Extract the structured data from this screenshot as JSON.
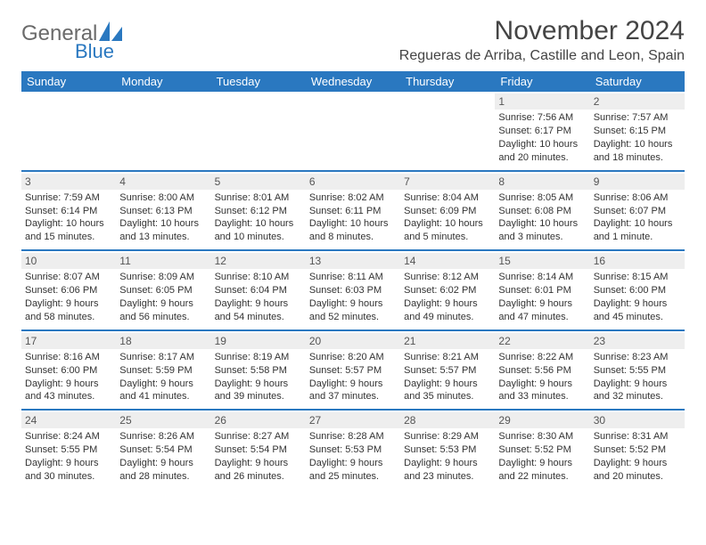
{
  "brand": {
    "text1": "General",
    "text2": "Blue"
  },
  "title": "November 2024",
  "location": "Regueras de Arriba, Castille and Leon, Spain",
  "colors": {
    "header_bg": "#2a78c0",
    "header_text": "#ffffff",
    "daynum_bg": "#eeeeee",
    "rule": "#2a78c0",
    "body_text": "#333333",
    "title_text": "#444444"
  },
  "weekdays": [
    "Sunday",
    "Monday",
    "Tuesday",
    "Wednesday",
    "Thursday",
    "Friday",
    "Saturday"
  ],
  "weeks": [
    [
      {
        "n": "",
        "sr": "",
        "ss": "",
        "dl1": "",
        "dl2": ""
      },
      {
        "n": "",
        "sr": "",
        "ss": "",
        "dl1": "",
        "dl2": ""
      },
      {
        "n": "",
        "sr": "",
        "ss": "",
        "dl1": "",
        "dl2": ""
      },
      {
        "n": "",
        "sr": "",
        "ss": "",
        "dl1": "",
        "dl2": ""
      },
      {
        "n": "",
        "sr": "",
        "ss": "",
        "dl1": "",
        "dl2": ""
      },
      {
        "n": "1",
        "sr": "Sunrise: 7:56 AM",
        "ss": "Sunset: 6:17 PM",
        "dl1": "Daylight: 10 hours",
        "dl2": "and 20 minutes."
      },
      {
        "n": "2",
        "sr": "Sunrise: 7:57 AM",
        "ss": "Sunset: 6:15 PM",
        "dl1": "Daylight: 10 hours",
        "dl2": "and 18 minutes."
      }
    ],
    [
      {
        "n": "3",
        "sr": "Sunrise: 7:59 AM",
        "ss": "Sunset: 6:14 PM",
        "dl1": "Daylight: 10 hours",
        "dl2": "and 15 minutes."
      },
      {
        "n": "4",
        "sr": "Sunrise: 8:00 AM",
        "ss": "Sunset: 6:13 PM",
        "dl1": "Daylight: 10 hours",
        "dl2": "and 13 minutes."
      },
      {
        "n": "5",
        "sr": "Sunrise: 8:01 AM",
        "ss": "Sunset: 6:12 PM",
        "dl1": "Daylight: 10 hours",
        "dl2": "and 10 minutes."
      },
      {
        "n": "6",
        "sr": "Sunrise: 8:02 AM",
        "ss": "Sunset: 6:11 PM",
        "dl1": "Daylight: 10 hours",
        "dl2": "and 8 minutes."
      },
      {
        "n": "7",
        "sr": "Sunrise: 8:04 AM",
        "ss": "Sunset: 6:09 PM",
        "dl1": "Daylight: 10 hours",
        "dl2": "and 5 minutes."
      },
      {
        "n": "8",
        "sr": "Sunrise: 8:05 AM",
        "ss": "Sunset: 6:08 PM",
        "dl1": "Daylight: 10 hours",
        "dl2": "and 3 minutes."
      },
      {
        "n": "9",
        "sr": "Sunrise: 8:06 AM",
        "ss": "Sunset: 6:07 PM",
        "dl1": "Daylight: 10 hours",
        "dl2": "and 1 minute."
      }
    ],
    [
      {
        "n": "10",
        "sr": "Sunrise: 8:07 AM",
        "ss": "Sunset: 6:06 PM",
        "dl1": "Daylight: 9 hours",
        "dl2": "and 58 minutes."
      },
      {
        "n": "11",
        "sr": "Sunrise: 8:09 AM",
        "ss": "Sunset: 6:05 PM",
        "dl1": "Daylight: 9 hours",
        "dl2": "and 56 minutes."
      },
      {
        "n": "12",
        "sr": "Sunrise: 8:10 AM",
        "ss": "Sunset: 6:04 PM",
        "dl1": "Daylight: 9 hours",
        "dl2": "and 54 minutes."
      },
      {
        "n": "13",
        "sr": "Sunrise: 8:11 AM",
        "ss": "Sunset: 6:03 PM",
        "dl1": "Daylight: 9 hours",
        "dl2": "and 52 minutes."
      },
      {
        "n": "14",
        "sr": "Sunrise: 8:12 AM",
        "ss": "Sunset: 6:02 PM",
        "dl1": "Daylight: 9 hours",
        "dl2": "and 49 minutes."
      },
      {
        "n": "15",
        "sr": "Sunrise: 8:14 AM",
        "ss": "Sunset: 6:01 PM",
        "dl1": "Daylight: 9 hours",
        "dl2": "and 47 minutes."
      },
      {
        "n": "16",
        "sr": "Sunrise: 8:15 AM",
        "ss": "Sunset: 6:00 PM",
        "dl1": "Daylight: 9 hours",
        "dl2": "and 45 minutes."
      }
    ],
    [
      {
        "n": "17",
        "sr": "Sunrise: 8:16 AM",
        "ss": "Sunset: 6:00 PM",
        "dl1": "Daylight: 9 hours",
        "dl2": "and 43 minutes."
      },
      {
        "n": "18",
        "sr": "Sunrise: 8:17 AM",
        "ss": "Sunset: 5:59 PM",
        "dl1": "Daylight: 9 hours",
        "dl2": "and 41 minutes."
      },
      {
        "n": "19",
        "sr": "Sunrise: 8:19 AM",
        "ss": "Sunset: 5:58 PM",
        "dl1": "Daylight: 9 hours",
        "dl2": "and 39 minutes."
      },
      {
        "n": "20",
        "sr": "Sunrise: 8:20 AM",
        "ss": "Sunset: 5:57 PM",
        "dl1": "Daylight: 9 hours",
        "dl2": "and 37 minutes."
      },
      {
        "n": "21",
        "sr": "Sunrise: 8:21 AM",
        "ss": "Sunset: 5:57 PM",
        "dl1": "Daylight: 9 hours",
        "dl2": "and 35 minutes."
      },
      {
        "n": "22",
        "sr": "Sunrise: 8:22 AM",
        "ss": "Sunset: 5:56 PM",
        "dl1": "Daylight: 9 hours",
        "dl2": "and 33 minutes."
      },
      {
        "n": "23",
        "sr": "Sunrise: 8:23 AM",
        "ss": "Sunset: 5:55 PM",
        "dl1": "Daylight: 9 hours",
        "dl2": "and 32 minutes."
      }
    ],
    [
      {
        "n": "24",
        "sr": "Sunrise: 8:24 AM",
        "ss": "Sunset: 5:55 PM",
        "dl1": "Daylight: 9 hours",
        "dl2": "and 30 minutes."
      },
      {
        "n": "25",
        "sr": "Sunrise: 8:26 AM",
        "ss": "Sunset: 5:54 PM",
        "dl1": "Daylight: 9 hours",
        "dl2": "and 28 minutes."
      },
      {
        "n": "26",
        "sr": "Sunrise: 8:27 AM",
        "ss": "Sunset: 5:54 PM",
        "dl1": "Daylight: 9 hours",
        "dl2": "and 26 minutes."
      },
      {
        "n": "27",
        "sr": "Sunrise: 8:28 AM",
        "ss": "Sunset: 5:53 PM",
        "dl1": "Daylight: 9 hours",
        "dl2": "and 25 minutes."
      },
      {
        "n": "28",
        "sr": "Sunrise: 8:29 AM",
        "ss": "Sunset: 5:53 PM",
        "dl1": "Daylight: 9 hours",
        "dl2": "and 23 minutes."
      },
      {
        "n": "29",
        "sr": "Sunrise: 8:30 AM",
        "ss": "Sunset: 5:52 PM",
        "dl1": "Daylight: 9 hours",
        "dl2": "and 22 minutes."
      },
      {
        "n": "30",
        "sr": "Sunrise: 8:31 AM",
        "ss": "Sunset: 5:52 PM",
        "dl1": "Daylight: 9 hours",
        "dl2": "and 20 minutes."
      }
    ]
  ]
}
